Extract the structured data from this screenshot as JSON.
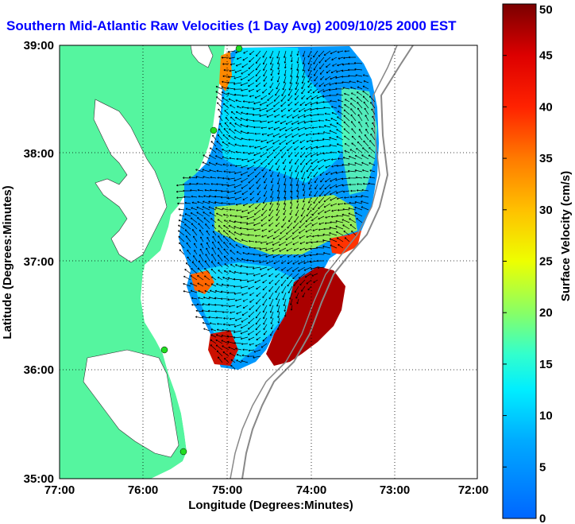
{
  "title": "Southern Mid-Atlantic Raw Velocities (1 Day Avg) 2009/10/25 2000 EST",
  "chart_data": {
    "type": "heatmap",
    "title": "Southern Mid-Atlantic Raw Velocities (1 Day Avg) 2009/10/25 2000 EST",
    "xlabel": "Longitude (Degrees:Minutes)",
    "ylabel": "Latitude (Degrees:Minutes)",
    "x_ticks": [
      "77:00",
      "76:00",
      "75:00",
      "74:00",
      "73:00",
      "72:00"
    ],
    "y_ticks": [
      "39:00",
      "38:00",
      "37:00",
      "36:00",
      "35:00"
    ],
    "x_values": [
      -77,
      -76,
      -75,
      -74,
      -73,
      -72
    ],
    "y_values": [
      39,
      38,
      37,
      36,
      35
    ],
    "xlim": [
      -77,
      -72
    ],
    "ylim": [
      35,
      39
    ],
    "grid": "dotted",
    "colorbar": {
      "label": "Surface Velocity (cm/s)",
      "ticks": [
        "0",
        "5",
        "10",
        "15",
        "20",
        "25",
        "30",
        "35",
        "40",
        "45",
        "50"
      ],
      "range": [
        0,
        50
      ],
      "colormap": "jet"
    },
    "colors": {
      "land": "#55f59f",
      "title": "#0000ff",
      "arrows": "#000000",
      "isobath": "#888888",
      "station": "#22dd22"
    }
  }
}
